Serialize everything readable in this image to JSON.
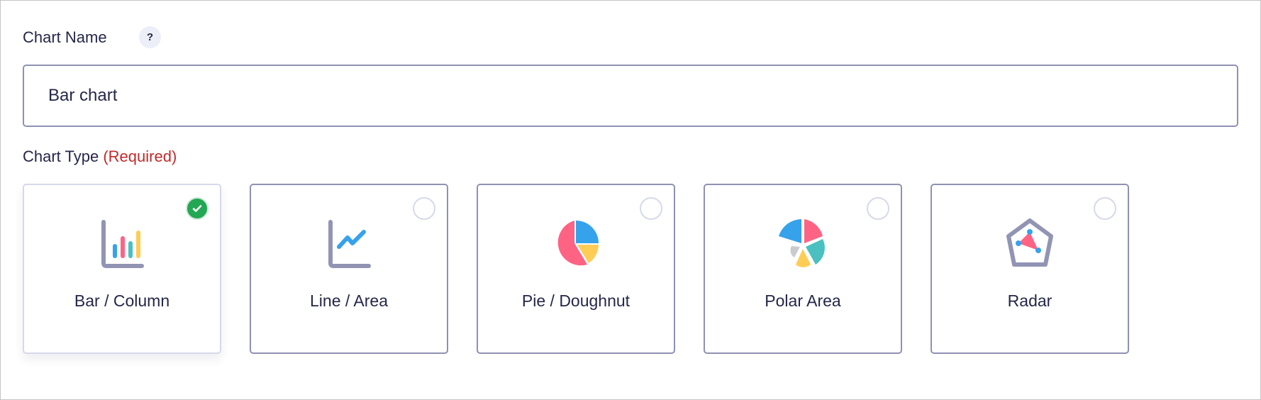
{
  "chart_name": {
    "label": "Chart Name",
    "help_icon": "?",
    "value": "Bar chart"
  },
  "chart_type": {
    "label": "Chart Type",
    "required": "(Required)",
    "options": [
      {
        "label": "Bar / Column",
        "icon": "bar-chart-icon",
        "selected": true
      },
      {
        "label": "Line / Area",
        "icon": "line-chart-icon",
        "selected": false
      },
      {
        "label": "Pie / Doughnut",
        "icon": "pie-chart-icon",
        "selected": false
      },
      {
        "label": "Polar Area",
        "icon": "polar-area-chart-icon",
        "selected": false
      },
      {
        "label": "Radar",
        "icon": "radar-chart-icon",
        "selected": false
      }
    ]
  },
  "colors": {
    "selected_check": "#22a753",
    "required": "#c02b2b",
    "card_border": "#8f91b3",
    "text": "#242748"
  }
}
